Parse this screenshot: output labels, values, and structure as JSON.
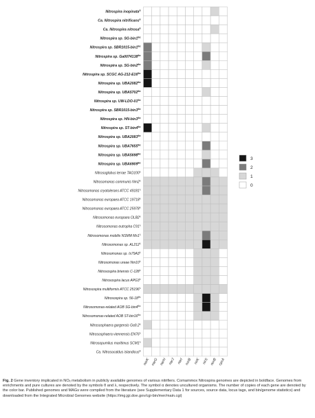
{
  "chart_data": {
    "type": "heatmap",
    "columns": [
      "narK",
      "narG",
      "narH",
      "narJ",
      "narI",
      "nxrB",
      "nirK",
      "nirS",
      "norB",
      "cycA"
    ],
    "rows": [
      {
        "label": "Nitrospira inopinata",
        "sup": "δ",
        "group": "comammox",
        "values": [
          0,
          0,
          0,
          0,
          0,
          0,
          0,
          0,
          1,
          0
        ]
      },
      {
        "label": "Ca. Nitrospira nitrificans",
        "sup": "θ",
        "group": "comammox",
        "values": [
          0,
          0,
          0,
          0,
          0,
          0,
          0,
          0,
          0,
          0
        ]
      },
      {
        "label": "Ca. Nitrospira nitrosa",
        "sup": "θ",
        "group": "comammox",
        "values": [
          0,
          0,
          0,
          0,
          0,
          0,
          0,
          0,
          1,
          0
        ]
      },
      {
        "label": "Nitrospira sp. SG-bin1",
        "sup": "θα",
        "group": "comammox",
        "values": [
          0,
          0,
          0,
          0,
          0,
          0,
          0,
          0,
          0,
          0
        ]
      },
      {
        "label": "Nitrospira sp. SBR1015-bin1",
        "sup": "θα",
        "group": "comammox",
        "values": [
          2,
          0,
          0,
          0,
          0,
          0,
          0,
          1,
          0,
          0
        ]
      },
      {
        "label": "Nitrospira sp. Ga0074138",
        "sup": "θα",
        "group": "comammox",
        "values": [
          2,
          0,
          0,
          0,
          0,
          0,
          0,
          2,
          0,
          0
        ]
      },
      {
        "label": "Nitrospira sp. SG-bin2",
        "sup": "θα",
        "group": "comammox",
        "values": [
          2,
          0,
          0,
          0,
          0,
          0,
          0,
          1,
          0,
          0
        ]
      },
      {
        "label": "Nitrospira sp. SCGC AG-212-E16",
        "sup": "θα",
        "group": "comammox",
        "values": [
          3,
          0,
          0,
          0,
          0,
          0,
          0,
          0,
          0,
          0
        ]
      },
      {
        "label": "Nitrospira sp. UBA2082",
        "sup": "θα",
        "group": "comammox",
        "values": [
          3,
          0,
          0,
          0,
          0,
          0,
          0,
          0,
          0,
          0
        ]
      },
      {
        "label": "Nitrospira sp. UBA5702",
        "sup": "θα",
        "group": "comammox",
        "values": [
          0,
          0,
          0,
          0,
          0,
          0,
          0,
          1,
          0,
          0
        ]
      },
      {
        "label": "Nitrospira sp. UW-LDO-01",
        "sup": "θα",
        "group": "comammox",
        "values": [
          0,
          0,
          0,
          0,
          0,
          0,
          0,
          0,
          0,
          0
        ]
      },
      {
        "label": "Nitrospira sp. SBR1015-bin3",
        "sup": "θα",
        "group": "comammox",
        "values": [
          0,
          0,
          0,
          0,
          0,
          0,
          0,
          0,
          0,
          0
        ]
      },
      {
        "label": "Nitrospira sp. HN-bin3",
        "sup": "θα",
        "group": "comammox",
        "values": [
          0,
          0,
          0,
          0,
          0,
          0,
          0,
          0,
          0,
          0
        ]
      },
      {
        "label": "Nitrospira sp. ST-bin4",
        "sup": "θα",
        "group": "comammox",
        "values": [
          3,
          0,
          0,
          0,
          0,
          0,
          0,
          1,
          0,
          0
        ]
      },
      {
        "label": "Nitrospira sp. UBA2083",
        "sup": "θα",
        "group": "comammox",
        "values": [
          0,
          0,
          0,
          0,
          0,
          0,
          0,
          0,
          0,
          0
        ]
      },
      {
        "label": "Nitrospira sp. UBA7655",
        "sup": "θα",
        "group": "comammox",
        "values": [
          0,
          0,
          0,
          0,
          0,
          0,
          0,
          2,
          0,
          0
        ]
      },
      {
        "label": "Nitrospira sp. UBA5698",
        "sup": "θα",
        "group": "comammox",
        "values": [
          0,
          0,
          0,
          0,
          0,
          0,
          0,
          1,
          0,
          0
        ]
      },
      {
        "label": "Nitrospira sp. UBA6909",
        "sup": "θα",
        "group": "comammox",
        "values": [
          0,
          0,
          0,
          0,
          0,
          0,
          0,
          2,
          0,
          0
        ]
      },
      {
        "label": "Nitrosoglobus terrae TAO100",
        "sup": "λ",
        "group": "other",
        "values": [
          0,
          0,
          0,
          0,
          0,
          0,
          1,
          1,
          1,
          0
        ]
      },
      {
        "label": "Nitrosomonas communis Nm2",
        "sup": "λ",
        "group": "other",
        "values": [
          1,
          1,
          1,
          1,
          1,
          1,
          1,
          2,
          1,
          1
        ]
      },
      {
        "label": "Nitrosomonas cryotolerans ATCC 49181",
        "sup": "λ",
        "group": "other",
        "values": [
          1,
          1,
          1,
          1,
          1,
          1,
          1,
          2,
          1,
          1
        ]
      },
      {
        "label": "Nitrosomonas europaea ATCC 19718",
        "sup": "λ",
        "group": "other",
        "values": [
          1,
          1,
          1,
          1,
          1,
          1,
          1,
          1,
          1,
          1
        ]
      },
      {
        "label": "Nitrosomonas europaea ATCC 25978",
        "sup": "λ",
        "group": "other",
        "values": [
          1,
          1,
          1,
          1,
          1,
          1,
          1,
          1,
          1,
          1
        ]
      },
      {
        "label": "Nitrosomonas europaea OLB2",
        "sup": "λ",
        "group": "other",
        "values": [
          1,
          1,
          1,
          1,
          1,
          1,
          1,
          1,
          1,
          1
        ]
      },
      {
        "label": "Nitrosomonas eutropha C91",
        "sup": "λ",
        "group": "other",
        "values": [
          1,
          1,
          1,
          1,
          1,
          1,
          1,
          1,
          1,
          1
        ]
      },
      {
        "label": "Nitrosomonas mobilis NSMM Ms1",
        "sup": "λ",
        "group": "other",
        "values": [
          1,
          1,
          1,
          1,
          1,
          1,
          1,
          2,
          1,
          1
        ]
      },
      {
        "label": "Nitrosomonas sp. AL212",
        "sup": "λ",
        "group": "other",
        "values": [
          1,
          1,
          1,
          1,
          1,
          1,
          1,
          3,
          1,
          1
        ]
      },
      {
        "label": "Nitrosomonas sp. Is79A3",
        "sup": "λ",
        "group": "other",
        "values": [
          0,
          0,
          0,
          0,
          0,
          0,
          1,
          1,
          1,
          0
        ]
      },
      {
        "label": "Nitrosomonas ureae Nm10",
        "sup": "λ",
        "group": "other",
        "values": [
          0,
          0,
          0,
          0,
          0,
          0,
          1,
          1,
          1,
          0
        ]
      },
      {
        "label": "Nitrosospira briensis C-128",
        "sup": "λ",
        "group": "other",
        "values": [
          0,
          0,
          0,
          0,
          0,
          0,
          1,
          1,
          1,
          0
        ]
      },
      {
        "label": "Nitrosospira lacus APG3",
        "sup": "λ",
        "group": "other",
        "values": [
          0,
          0,
          0,
          0,
          0,
          0,
          1,
          1,
          1,
          0
        ]
      },
      {
        "label": "Nitrosospira multiformis ATCC 25196",
        "sup": "λ",
        "group": "other",
        "values": [
          1,
          1,
          1,
          1,
          1,
          1,
          1,
          1,
          1,
          1
        ]
      },
      {
        "label": "Nitrosospira sp. 56-18",
        "sup": "θλ",
        "group": "other",
        "values": [
          0,
          0,
          0,
          0,
          0,
          0,
          1,
          3,
          1,
          0
        ]
      },
      {
        "label": "Nitrosomonas-related AOB SG-bin4",
        "sup": "θα",
        "group": "other",
        "values": [
          0,
          0,
          0,
          0,
          0,
          0,
          1,
          3,
          1,
          0
        ]
      },
      {
        "label": "Nitrosomonas-related AOB ST-bin16",
        "sup": "θα",
        "group": "other",
        "values": [
          0,
          0,
          0,
          0,
          0,
          0,
          1,
          1,
          1,
          0
        ]
      },
      {
        "label": "Nitrososphaera gargensis Ga9.2",
        "sup": "λ",
        "group": "other",
        "values": [
          1,
          0,
          0,
          0,
          0,
          0,
          0,
          0,
          0,
          0
        ]
      },
      {
        "label": "Nitrososphaera viennensis EN76",
        "sup": "λ",
        "group": "other",
        "values": [
          0,
          0,
          0,
          0,
          0,
          0,
          0,
          0,
          0,
          0
        ]
      },
      {
        "label": "Nitrosopumilus maritimus SCM1",
        "sup": "λ",
        "group": "other",
        "values": [
          1,
          0,
          0,
          0,
          0,
          0,
          0,
          0,
          0,
          0
        ]
      },
      {
        "label": "Ca. Nitrosocaldus islandicus",
        "sup": "θ",
        "group": "other",
        "values": [
          0,
          0,
          0,
          0,
          0,
          0,
          0,
          0,
          0,
          0
        ]
      }
    ],
    "legend": [
      "3",
      "2",
      "1",
      "0"
    ],
    "scale_colors": {
      "3": "#151515",
      "2": "#7b7b7b",
      "1": "#d7d7d7",
      "0": "#ffffff"
    },
    "grid_color": "#bdbdbd"
  },
  "caption": {
    "lead": "Fig. 2",
    "text": "Gene inventory implicated in NOₓ metabolism in publicly available genomes of various nitrifiers. Comammox Nitrospira genomes are depicted in boldface. Genomes from enrichments and pure cultures are denoted by the symbols θ and λ, respectively. The symbol α denotes uncultured organisms. The number of copies of each gene are denoted by the color bar. Published genomes and MAGs were compiled from the literature (see Supplementary Data 1 for sources, source data, locus tags, and bin/genome statistics) and downloaded from the Integrated Microbial Genomes website (https://img.jgi.doe.gov/cgi-bin/mer/main.cgi)"
  }
}
